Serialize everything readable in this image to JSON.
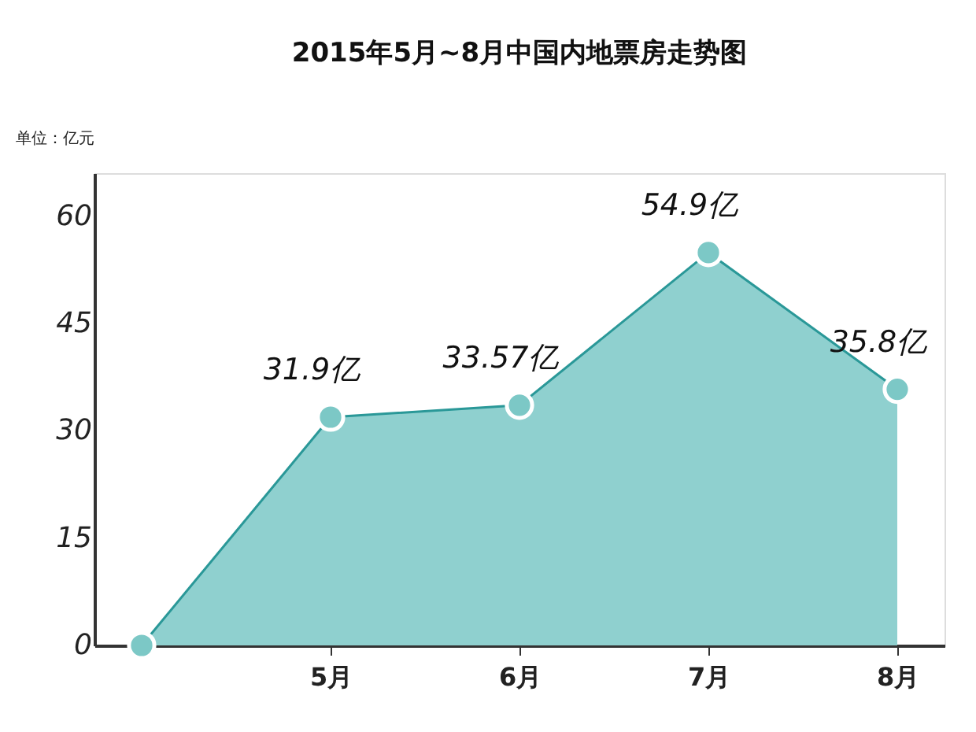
{
  "chart_data": {
    "type": "area",
    "title": "2015年5月~8月中国内地票房走势图",
    "annotations": [
      "单位：亿元"
    ],
    "categories": [
      null,
      "5月",
      "6月",
      "7月",
      "8月"
    ],
    "series": [
      {
        "color": "#8fd0cf",
        "values": [
          0,
          31.9,
          33.57,
          54.9,
          35.8
        ],
        "value_labels": [
          null,
          "31.9亿",
          "33.57亿",
          "54.9亿",
          "35.8亿"
        ]
      }
    ],
    "ylim": [
      0,
      66
    ],
    "yticks": [
      0,
      15,
      30,
      45,
      60
    ],
    "grid": false,
    "marker": "circle",
    "line_style": "solid"
  }
}
